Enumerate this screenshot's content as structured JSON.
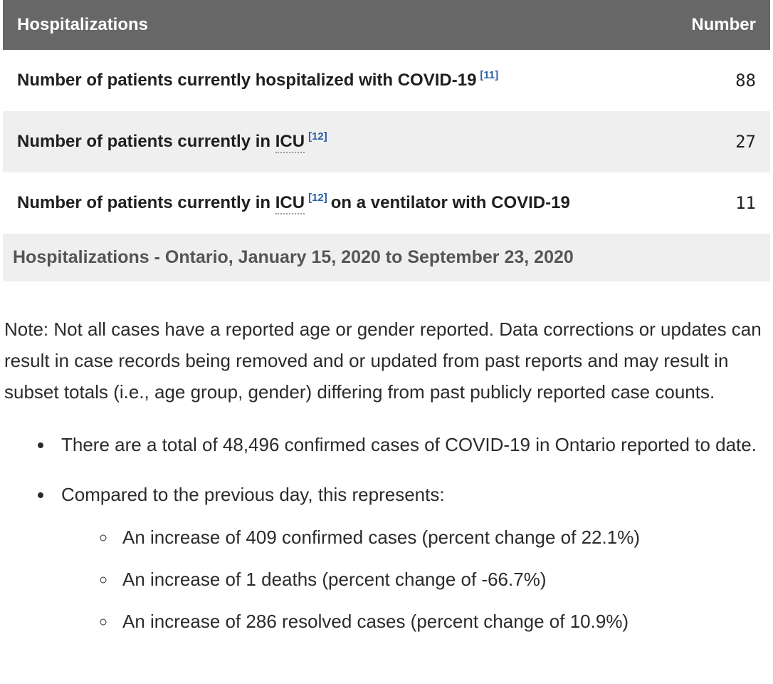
{
  "table": {
    "header": {
      "label": "Hospitalizations",
      "number_col": "Number"
    },
    "rows": [
      {
        "text1": "Number of patients currently hospitalized with COVID-19",
        "footnote": "[11]",
        "value": "88"
      },
      {
        "text1": "Number of patients currently in",
        "abbr": "ICU",
        "footnote": "[12]",
        "value": "27"
      },
      {
        "text1": "Number of patients currently in",
        "abbr": "ICU",
        "footnote": "[12]",
        "text2": "on a ventilator with COVID-19",
        "value": "11"
      }
    ],
    "caption": "Hospitalizations - Ontario, January 15, 2020 to September 23, 2020"
  },
  "note": "Note: Not all cases have a reported age or gender reported. Data corrections or updates can result in case records being removed and or updated from past reports and may result in subset totals (i.e., age group, gender) differing from past publicly reported case counts.",
  "summary": {
    "bullets": [
      "There are a total of 48,496 confirmed cases of COVID-19 in Ontario reported to date.",
      "Compared to the previous day, this represents:"
    ],
    "sub_bullets": [
      "An increase of 409 confirmed cases (percent change of 22.1%)",
      "An increase of 1 deaths (percent change of -66.7%)",
      "An increase of 286 resolved cases (percent change of 10.9%)"
    ]
  },
  "colors": {
    "header_bg": "#676767",
    "header_text": "#ffffff",
    "row_alt_bg": "#efefef",
    "caption_bg": "#efefef",
    "caption_text": "#555555",
    "link_blue": "#2a5fa5",
    "body_text": "#2b2b2b"
  }
}
